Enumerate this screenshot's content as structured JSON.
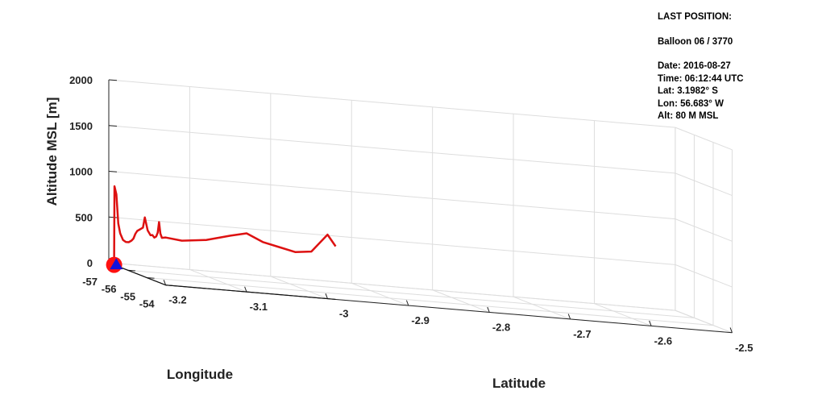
{
  "last_position": {
    "heading": "LAST POSITION:",
    "balloon": "Balloon 06 / 3770",
    "date": "Date: 2016-08-27",
    "time": "Time: 06:12:44 UTC",
    "lat": "Lat:  3.1982° S",
    "lon": "Lon:  56.683° W",
    "alt": "Alt:  80 M MSL"
  },
  "chart_data": {
    "type": "line",
    "projection": "3d",
    "xlabel": "Longitude",
    "ylabel": "Latitude",
    "zlabel": "Altitude MSL [m]",
    "xlim": [
      -57,
      -54
    ],
    "ylim": [
      -3.2,
      -2.5
    ],
    "zlim": [
      0,
      2000
    ],
    "xticks": [
      -57,
      -56,
      -55,
      -54
    ],
    "yticks": [
      -3.2,
      -3.1,
      -3.0,
      -2.9,
      -2.8,
      -2.7,
      -2.6,
      -2.5
    ],
    "zticks": [
      0,
      500,
      1000,
      1500,
      2000
    ],
    "xtick_labels": [
      "-57",
      "-56",
      "-55",
      "-54"
    ],
    "ytick_labels": [
      "-3.2",
      "-3.1",
      "-3",
      "-2.9",
      "-2.8",
      "-2.7",
      "-2.6",
      "-2.5"
    ],
    "ztick_labels": [
      "0",
      "500",
      "1000",
      "1500",
      "2000"
    ],
    "grid": true,
    "colors": {
      "track": "#dd1111",
      "ground_track": "#111111",
      "launch": "#ff1111",
      "last": "#1111dd",
      "grid": "#dddddd",
      "box": "#222222"
    },
    "launch_point": {
      "lon": -56.72,
      "lat": -3.2,
      "alt": 0
    },
    "last_point": {
      "lon": -56.683,
      "lat": -3.1982,
      "alt": 80
    },
    "track": [
      {
        "lon": -56.72,
        "lat": -3.2,
        "alt": 0
      },
      {
        "lon": -56.7,
        "lat": -3.2,
        "alt": 860
      },
      {
        "lon": -56.6,
        "lat": -3.2,
        "alt": 780
      },
      {
        "lon": -56.5,
        "lat": -3.2,
        "alt": 470
      },
      {
        "lon": -56.4,
        "lat": -3.2,
        "alt": 370
      },
      {
        "lon": -56.25,
        "lat": -3.2,
        "alt": 310
      },
      {
        "lon": -56.1,
        "lat": -3.2,
        "alt": 300
      },
      {
        "lon": -55.95,
        "lat": -3.2,
        "alt": 310
      },
      {
        "lon": -55.8,
        "lat": -3.2,
        "alt": 340
      },
      {
        "lon": -55.7,
        "lat": -3.2,
        "alt": 370
      },
      {
        "lon": -55.6,
        "lat": -3.2,
        "alt": 430
      },
      {
        "lon": -55.5,
        "lat": -3.2,
        "alt": 470
      },
      {
        "lon": -55.35,
        "lat": -3.2,
        "alt": 500
      },
      {
        "lon": -55.2,
        "lat": -3.2,
        "alt": 530
      },
      {
        "lon": -55.1,
        "lat": -3.2,
        "alt": 650
      },
      {
        "lon": -54.95,
        "lat": -3.2,
        "alt": 520
      },
      {
        "lon": -54.8,
        "lat": -3.2,
        "alt": 480
      },
      {
        "lon": -54.7,
        "lat": -3.2,
        "alt": 490
      },
      {
        "lon": -54.6,
        "lat": -3.2,
        "alt": 470
      },
      {
        "lon": -54.5,
        "lat": -3.2,
        "alt": 490
      },
      {
        "lon": -54.42,
        "lat": -3.2,
        "alt": 540
      },
      {
        "lon": -54.35,
        "lat": -3.2,
        "alt": 660
      },
      {
        "lon": -54.28,
        "lat": -3.2,
        "alt": 540
      },
      {
        "lon": -54.2,
        "lat": -3.2,
        "alt": 500
      },
      {
        "lon": -54.1,
        "lat": -3.2,
        "alt": 510
      },
      {
        "lon": -54.0,
        "lat": -3.2,
        "alt": 520
      },
      {
        "lon": -54.0,
        "lat": -3.18,
        "alt": 500
      },
      {
        "lon": -54.0,
        "lat": -3.15,
        "alt": 530
      },
      {
        "lon": -54.0,
        "lat": -3.12,
        "alt": 600
      },
      {
        "lon": -54.0,
        "lat": -3.1,
        "alt": 640
      },
      {
        "lon": -54.0,
        "lat": -3.08,
        "alt": 560
      },
      {
        "lon": -54.0,
        "lat": -3.06,
        "alt": 520
      },
      {
        "lon": -54.0,
        "lat": -3.04,
        "alt": 480
      },
      {
        "lon": -54.0,
        "lat": -3.02,
        "alt": 500
      },
      {
        "lon": -54.0,
        "lat": -3.0,
        "alt": 700
      },
      {
        "lon": -54.0,
        "lat": -2.99,
        "alt": 580
      }
    ]
  }
}
